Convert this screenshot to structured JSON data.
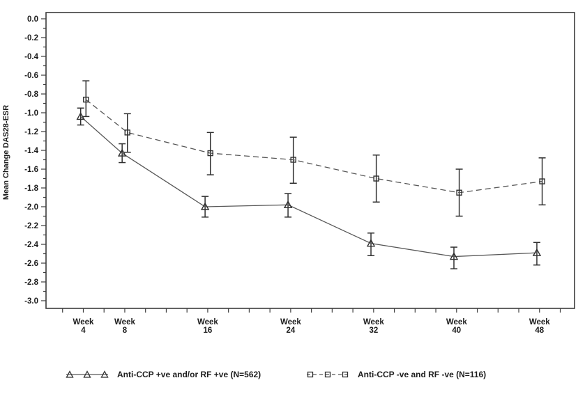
{
  "figure": {
    "background": "#ffffff",
    "ink_color": "#1c1c1c",
    "axis_color": "#3c3c3c",
    "series_line_color": "#575757",
    "error_bar_color": "#2f2f2f"
  },
  "chart_data": {
    "type": "line",
    "title": "",
    "xlabel": "",
    "ylabel": "Mean Change DAS28-ESR",
    "x_unit": "Week",
    "x_tick_weeks": [
      4,
      8,
      16,
      24,
      32,
      40,
      48
    ],
    "x_minor_tick_step_weeks": 2,
    "x_minor_tick_range_weeks": [
      2,
      50
    ],
    "ylim": [
      -3.08,
      0.07
    ],
    "y_major_step": 0.2,
    "y_minor_step": 0.1,
    "y_tick_labels": [
      "0.0",
      "-0.2",
      "-0.4",
      "-0.6",
      "-0.8",
      "-1.0",
      "-1.2",
      "-1.4",
      "-1.6",
      "-1.8",
      "-2.0",
      "-2.2",
      "-2.4",
      "-2.6",
      "-2.8",
      "-3.0"
    ],
    "grid": "off",
    "legend_position": "bottom",
    "series": [
      {
        "name": "Anti-CCP +ve and/or RF +ve (N=562)",
        "marker": "triangle",
        "line_style": "solid",
        "x": [
          4,
          8,
          16,
          24,
          32,
          40,
          48
        ],
        "values": [
          -1.04,
          -1.43,
          -2.0,
          -1.98,
          -2.39,
          -2.53,
          -2.49
        ],
        "err_high": [
          -0.95,
          -1.33,
          -1.89,
          -1.86,
          -2.28,
          -2.43,
          -2.38
        ],
        "err_low": [
          -1.13,
          -1.53,
          -2.11,
          -2.11,
          -2.52,
          -2.66,
          -2.62
        ]
      },
      {
        "name": "Anti-CCP -ve and RF -ve (N=116)",
        "marker": "square",
        "line_style": "dashed",
        "x": [
          4,
          8,
          16,
          24,
          32,
          40,
          48
        ],
        "values": [
          -0.86,
          -1.21,
          -1.43,
          -1.5,
          -1.7,
          -1.85,
          -1.73
        ],
        "err_high": [
          -0.66,
          -1.01,
          -1.21,
          -1.26,
          -1.45,
          -1.6,
          -1.48
        ],
        "err_low": [
          -1.04,
          -1.42,
          -1.66,
          -1.75,
          -1.95,
          -2.1,
          -1.98
        ]
      }
    ]
  },
  "legend": {
    "items": [
      {
        "label": "Anti-CCP +ve and/or RF +ve (N=562)",
        "marker": "triangle",
        "line_style": "solid"
      },
      {
        "label": "Anti-CCP -ve and RF -ve (N=116)",
        "marker": "square",
        "line_style": "dashed"
      }
    ]
  }
}
